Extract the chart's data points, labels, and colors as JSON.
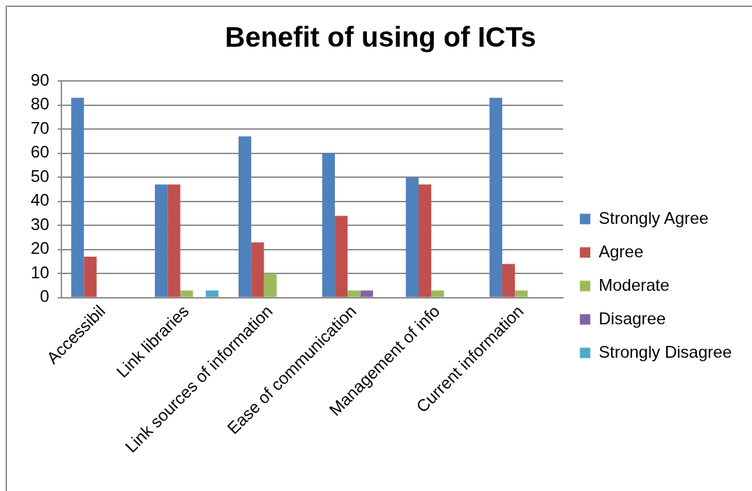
{
  "chart_data": {
    "type": "bar",
    "title": "Benefit of using of ICTs",
    "categories": [
      "Accessibil",
      "Link libraries",
      "Link sources of information",
      "Ease of communication",
      "Management of info",
      "Current information"
    ],
    "series": [
      {
        "name": "Strongly Agree",
        "color": "#4f81bd",
        "values": [
          83,
          47,
          67,
          60,
          50,
          83
        ]
      },
      {
        "name": "Agree",
        "color": "#c0504d",
        "values": [
          17,
          47,
          23,
          34,
          47,
          14
        ]
      },
      {
        "name": "Moderate",
        "color": "#9bbb59",
        "values": [
          0,
          3,
          10,
          3,
          3,
          3
        ]
      },
      {
        "name": "Disagree",
        "color": "#8064a2",
        "values": [
          0,
          0,
          0,
          3,
          0,
          0
        ]
      },
      {
        "name": "Strongly Disagree",
        "color": "#4bacc6",
        "values": [
          0,
          3,
          0,
          0,
          0,
          0
        ]
      }
    ],
    "ylim": [
      0,
      90
    ],
    "yticks": [
      0,
      10,
      20,
      30,
      40,
      50,
      60,
      70,
      80,
      90
    ],
    "grid": "y",
    "legend": "right"
  }
}
